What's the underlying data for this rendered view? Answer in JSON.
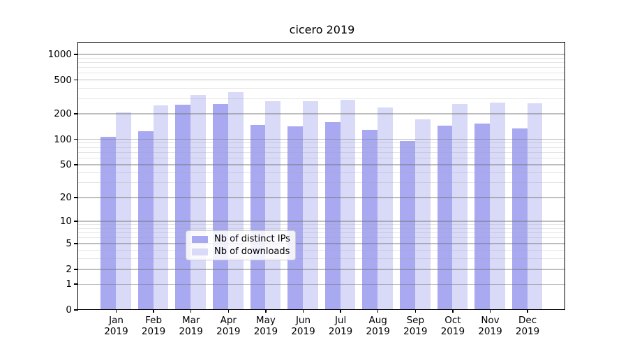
{
  "chart_data": {
    "type": "bar",
    "title": "cicero 2019",
    "yscale": "log1p",
    "ylim": [
      0,
      1360
    ],
    "grid": "on",
    "legend_position": "lower center",
    "yticks": [
      0,
      1,
      2,
      5,
      10,
      20,
      50,
      100,
      200,
      500,
      1000
    ],
    "yticks_minor": [
      3,
      4,
      6,
      7,
      8,
      9,
      30,
      40,
      60,
      70,
      80,
      90,
      300,
      400,
      600,
      700,
      800,
      900
    ],
    "categories": [
      "Jan",
      "Feb",
      "Mar",
      "Apr",
      "May",
      "Jun",
      "Jul",
      "Aug",
      "Sep",
      "Oct",
      "Nov",
      "Dec"
    ],
    "x_year_label": "2019",
    "series": [
      {
        "name": "Nb of distinct IPs",
        "color": "#a9a9f1",
        "values": [
          106,
          124,
          253,
          257,
          147,
          141,
          157,
          127,
          95,
          143,
          152,
          134
        ]
      },
      {
        "name": "Nb of downloads",
        "color": "#d9d9f8",
        "values": [
          206,
          249,
          331,
          357,
          278,
          281,
          292,
          237,
          169,
          257,
          266,
          262
        ]
      }
    ]
  }
}
